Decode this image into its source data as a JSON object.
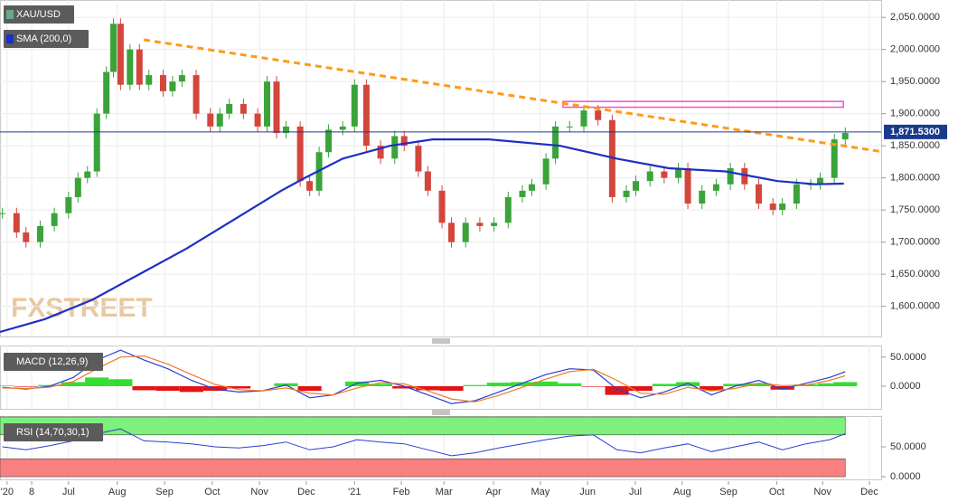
{
  "chart_data": [
    {
      "type": "candlestick",
      "xlim": [
        -1.45,
        17.19
      ],
      "xticks": [
        {
          "value": -1.3,
          "label": "'20"
        },
        {
          "value": -0.78,
          "label": "8"
        },
        {
          "value": 0,
          "label": "Jul"
        },
        {
          "value": 1.03,
          "label": "Aug"
        },
        {
          "value": 2.03,
          "label": "Sep"
        },
        {
          "value": 3.04,
          "label": "Oct"
        },
        {
          "value": 4.04,
          "label": "Nov"
        },
        {
          "value": 5.03,
          "label": "Dec"
        },
        {
          "value": 6.05,
          "label": "'21"
        },
        {
          "value": 7.04,
          "label": "Feb"
        },
        {
          "value": 7.94,
          "label": "Mar"
        },
        {
          "value": 8.99,
          "label": "Apr"
        },
        {
          "value": 9.98,
          "label": "May"
        },
        {
          "value": 10.98,
          "label": "Jun"
        },
        {
          "value": 11.99,
          "label": "Jul"
        },
        {
          "value": 12.98,
          "label": "Aug"
        },
        {
          "value": 13.96,
          "label": "Sep"
        },
        {
          "value": 14.98,
          "label": "Oct"
        },
        {
          "value": 15.95,
          "label": "Nov"
        },
        {
          "value": 16.94,
          "label": "Dec"
        }
      ],
      "ylim": [
        1553,
        2077
      ],
      "yticks": [
        {
          "value": 1600,
          "label": "1,600.0000"
        },
        {
          "value": 1650,
          "label": "1,650.0000"
        },
        {
          "value": 1700,
          "label": "1,700.0000"
        },
        {
          "value": 1750,
          "label": "1,750.0000"
        },
        {
          "value": 1800,
          "label": "1,800.0000"
        },
        {
          "value": 1850,
          "label": "1,850.0000"
        },
        {
          "value": 1900,
          "label": "1,900.0000"
        },
        {
          "value": 1950,
          "label": "1,950.0000"
        },
        {
          "value": 2000,
          "label": "2,000.0000"
        },
        {
          "value": 2050,
          "label": "2,050.0000"
        }
      ],
      "grid": true,
      "series": [
        {
          "name": "XAU/USD",
          "color_up": "#3aa33a",
          "color_down": "#d2463c",
          "x": [
            -1.4,
            -1.1,
            -0.9,
            -0.6,
            -0.3,
            0,
            0.2,
            0.4,
            0.6,
            0.8,
            0.95,
            1.1,
            1.3,
            1.5,
            1.7,
            2.0,
            2.2,
            2.4,
            2.7,
            3.0,
            3.2,
            3.4,
            3.7,
            4.0,
            4.2,
            4.4,
            4.6,
            4.9,
            5.1,
            5.3,
            5.5,
            5.8,
            6.05,
            6.3,
            6.6,
            6.9,
            7.1,
            7.4,
            7.6,
            7.9,
            8.1,
            8.4,
            8.7,
            9.0,
            9.3,
            9.6,
            9.8,
            10.1,
            10.3,
            10.6,
            10.9,
            11.2,
            11.5,
            11.8,
            12.0,
            12.3,
            12.6,
            12.9,
            13.1,
            13.4,
            13.7,
            14.0,
            14.3,
            14.6,
            14.9,
            15.1,
            15.4,
            15.7,
            15.9,
            16.2,
            16.43
          ],
          "values": [
            1745,
            1715,
            1700,
            1725,
            1745,
            1770,
            1800,
            1810,
            1900,
            1965,
            2040,
            1945,
            2000,
            1945,
            1960,
            1935,
            1950,
            1960,
            1900,
            1880,
            1900,
            1915,
            1900,
            1880,
            1950,
            1870,
            1880,
            1795,
            1780,
            1840,
            1875,
            1880,
            1945,
            1850,
            1830,
            1865,
            1850,
            1810,
            1780,
            1730,
            1700,
            1730,
            1725,
            1730,
            1770,
            1780,
            1790,
            1830,
            1880,
            1880,
            1905,
            1890,
            1770,
            1780,
            1795,
            1810,
            1800,
            1815,
            1760,
            1780,
            1790,
            1815,
            1790,
            1760,
            1750,
            1760,
            1790,
            1790,
            1800,
            1860,
            1870
          ]
        },
        {
          "name": "SMA (200,0)",
          "color": "#1d2fc4",
          "x": [
            -1.45,
            -0.5,
            0.5,
            1.5,
            2.5,
            3.5,
            4.5,
            5.0,
            5.8,
            6.8,
            7.7,
            8.9,
            10.4,
            11.6,
            12.7,
            13.9,
            15.0,
            15.8,
            16.4
          ],
          "values": [
            1560,
            1580,
            1610,
            1650,
            1690,
            1735,
            1780,
            1800,
            1830,
            1850,
            1860,
            1860,
            1850,
            1830,
            1815,
            1810,
            1795,
            1790,
            1791
          ]
        }
      ],
      "trendline": {
        "color": "#ff9a1a",
        "x": [
          1.59,
          17.19
        ],
        "values": [
          2015,
          1841
        ]
      },
      "zone": {
        "color": "#f04fd0",
        "x": [
          10.46,
          16.39
        ],
        "values": [
          1910,
          1919
        ]
      },
      "last_price": {
        "value": 1871.53,
        "label": "1,871.5300",
        "color": "#1a3a8c"
      },
      "watermark": "FXSTREET"
    },
    {
      "type": "macd",
      "title": "MACD (12,26,9)",
      "x": [
        -1.4,
        -0.9,
        -0.4,
        0.1,
        0.6,
        1.1,
        1.6,
        2.1,
        2.6,
        3.1,
        3.6,
        4.1,
        4.6,
        5.1,
        5.6,
        6.1,
        6.6,
        7.1,
        7.6,
        8.1,
        8.6,
        9.1,
        9.6,
        10.1,
        10.6,
        11.1,
        11.6,
        12.1,
        12.6,
        13.1,
        13.6,
        14.1,
        14.6,
        15.1,
        15.6,
        16.1,
        16.43
      ],
      "ylim": [
        -39,
        70
      ],
      "yticks": [
        {
          "value": 0,
          "label": "0.0000"
        },
        {
          "value": 50,
          "label": "50.0000"
        }
      ],
      "series": [
        {
          "color": "#2a3fd0",
          "values": [
            -2,
            -5,
            0,
            15,
            45,
            62,
            45,
            30,
            10,
            -5,
            -10,
            -8,
            2,
            -20,
            -15,
            5,
            10,
            0,
            -15,
            -30,
            -25,
            -10,
            5,
            20,
            30,
            28,
            -5,
            -20,
            -10,
            5,
            -15,
            0,
            10,
            -5,
            5,
            15,
            25
          ]
        },
        {
          "color": "#f07a2a",
          "values": [
            -3,
            -4,
            -2,
            8,
            30,
            50,
            52,
            38,
            20,
            3,
            -6,
            -8,
            -3,
            -12,
            -15,
            -3,
            6,
            4,
            -8,
            -22,
            -27,
            -16,
            -2,
            12,
            25,
            29,
            10,
            -12,
            -14,
            -2,
            -8,
            -4,
            5,
            1,
            2,
            10,
            18
          ]
        }
      ],
      "histogram": {
        "color_up": "#33dd33",
        "color_down": "#e01515",
        "values": [
          1,
          -1,
          2,
          7,
          15,
          12,
          -7,
          -8,
          -10,
          -8,
          -4,
          0,
          5,
          -8,
          0,
          8,
          4,
          -4,
          -7,
          -8,
          2,
          6,
          7,
          8,
          5,
          -1,
          -15,
          -8,
          4,
          7,
          -7,
          4,
          5,
          -6,
          3,
          5,
          7
        ]
      }
    },
    {
      "type": "rsi",
      "title": "RSI (14,70,30,1)",
      "x": [
        -1.4,
        -0.9,
        -0.4,
        0.1,
        0.6,
        1.1,
        1.6,
        2.1,
        2.6,
        3.1,
        3.6,
        4.1,
        4.6,
        5.1,
        5.6,
        6.1,
        6.6,
        7.1,
        7.6,
        8.1,
        8.6,
        9.1,
        9.6,
        10.1,
        10.6,
        11.1,
        11.6,
        12.1,
        12.6,
        13.1,
        13.6,
        14.1,
        14.6,
        15.1,
        15.6,
        16.1,
        16.43
      ],
      "values": [
        50,
        45,
        52,
        60,
        72,
        80,
        60,
        58,
        55,
        50,
        48,
        52,
        58,
        45,
        50,
        62,
        58,
        55,
        45,
        35,
        40,
        48,
        55,
        62,
        68,
        70,
        45,
        40,
        48,
        55,
        42,
        50,
        58,
        45,
        55,
        62,
        72
      ],
      "color": "#2a3fd0",
      "bands": [
        {
          "from": 70,
          "to": 100,
          "color": "#7df07d"
        },
        {
          "from": 0,
          "to": 30,
          "color": "#f88080"
        }
      ],
      "band_end": 16.43,
      "ylim": [
        -4.5,
        101.5
      ],
      "yticks": [
        {
          "value": 0,
          "label": "0.0000"
        },
        {
          "value": 50,
          "label": "50.0000"
        }
      ]
    }
  ]
}
